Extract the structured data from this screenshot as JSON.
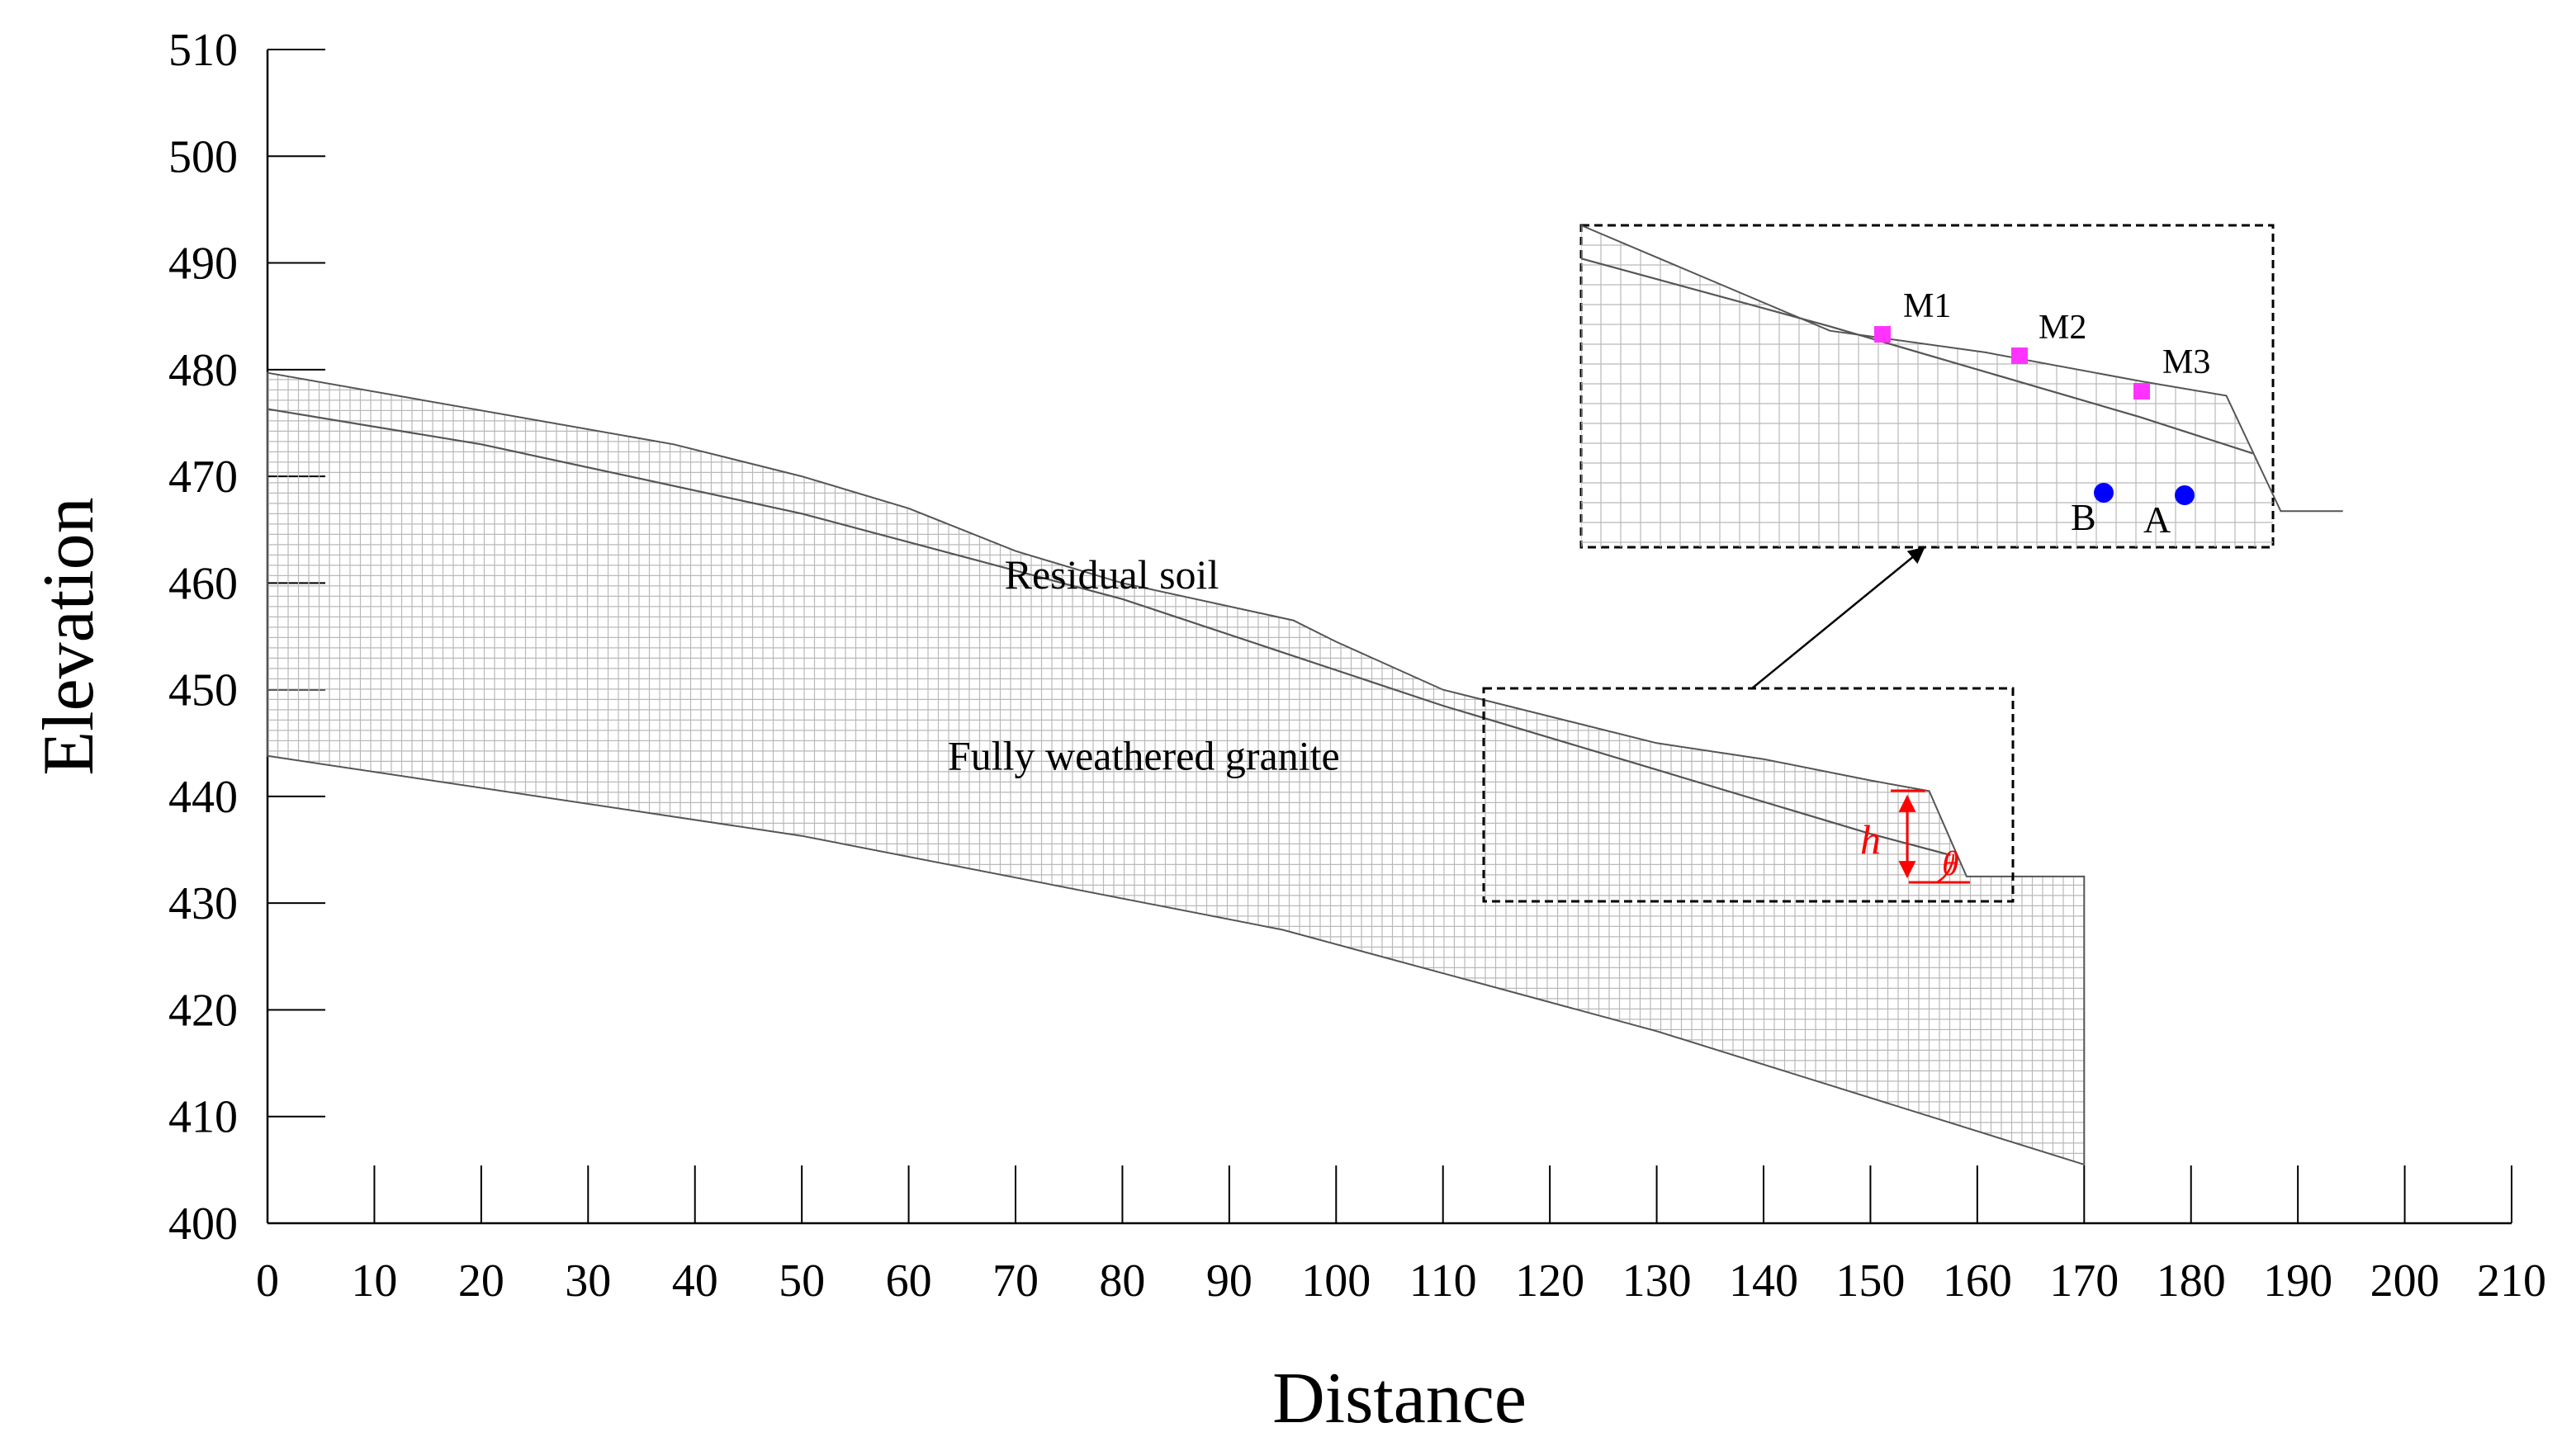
{
  "chart_data": {
    "type": "diagram",
    "title": "",
    "xlabel": "Distance",
    "ylabel": "Elevation",
    "xlim": [
      0,
      210
    ],
    "ylim": [
      400,
      510
    ],
    "x_ticks": [
      "0",
      "10",
      "20",
      "30",
      "40",
      "50",
      "60",
      "70",
      "80",
      "90",
      "100",
      "110",
      "120",
      "130",
      "140",
      "150",
      "160",
      "170",
      "180",
      "190",
      "200",
      "210"
    ],
    "y_ticks": [
      "400",
      "410",
      "420",
      "430",
      "440",
      "450",
      "460",
      "470",
      "480",
      "490",
      "500",
      "510"
    ],
    "colors": {
      "mesh": "#b9b9b9",
      "boundary": "#555555",
      "monitor": "#ff33ff",
      "point": "#0000ff",
      "annotation": "#ff0000"
    },
    "layers": [
      {
        "name": "Residual soil",
        "label_at": [
          79,
          459.5
        ]
      },
      {
        "name": "Fully weathered granite",
        "label_at": [
          82,
          442.5
        ]
      }
    ],
    "ground_surface": [
      [
        0,
        479.7
      ],
      [
        38,
        473
      ],
      [
        50,
        470
      ],
      [
        60,
        467
      ],
      [
        70,
        463
      ],
      [
        80,
        460
      ],
      [
        96,
        456.5
      ],
      [
        100,
        454.5
      ],
      [
        110,
        450
      ],
      [
        120,
        447.5
      ],
      [
        130,
        445
      ],
      [
        140,
        443.5
      ],
      [
        150,
        441.5
      ],
      [
        155.5,
        440.5
      ],
      [
        159,
        432.5
      ],
      [
        170,
        432.5
      ],
      [
        170,
        405.5
      ]
    ],
    "layer_interface": [
      [
        0,
        476.3
      ],
      [
        20,
        473
      ],
      [
        50,
        466.5
      ],
      [
        80,
        458.5
      ],
      [
        95,
        453.5
      ],
      [
        110,
        448.5
      ],
      [
        130,
        442.5
      ],
      [
        150,
        436.5
      ],
      [
        157.5,
        434.5
      ]
    ],
    "bottom_boundary": [
      [
        0,
        443.8
      ],
      [
        50,
        436.3
      ],
      [
        95,
        427.5
      ],
      [
        130,
        418
      ],
      [
        170,
        405.5
      ]
    ],
    "annotations": {
      "height_symbol": "h",
      "angle_symbol": "θ",
      "monitor_points": [
        "M1",
        "M2",
        "M3"
      ],
      "point_a": "A",
      "point_b": "B"
    }
  }
}
